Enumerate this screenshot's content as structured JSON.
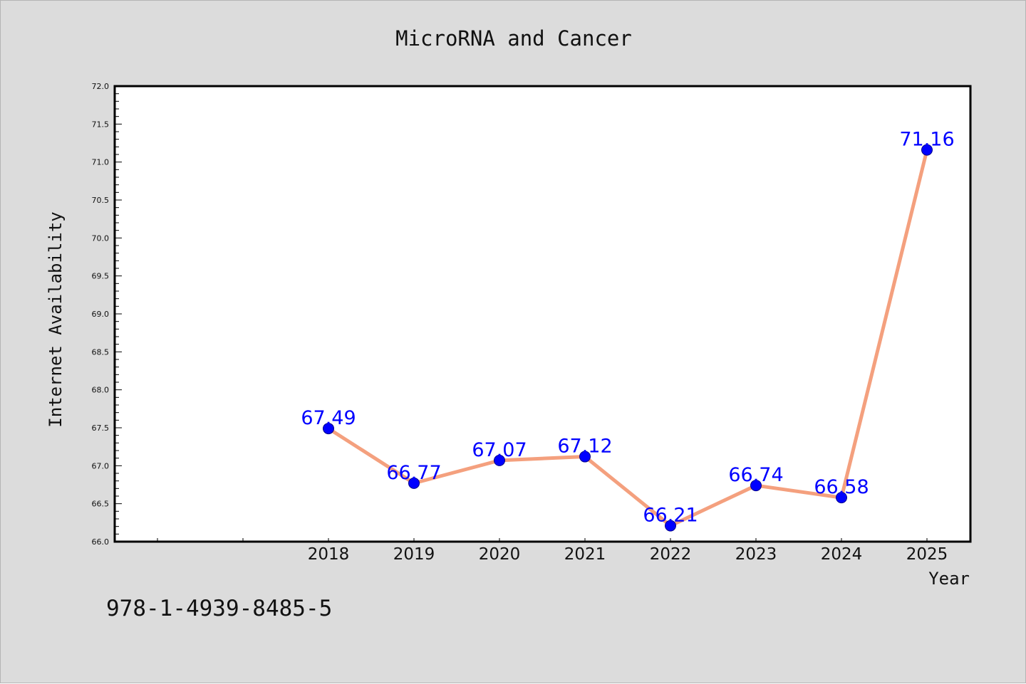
{
  "chart_data": {
    "type": "line",
    "title": "MicroRNA and Cancer",
    "xlabel": "Year",
    "ylabel": "Internet Availability",
    "x": [
      "2018",
      "2019",
      "2020",
      "2021",
      "2022",
      "2023",
      "2024",
      "2025"
    ],
    "series": [
      {
        "values": [
          67.49,
          66.77,
          67.07,
          67.12,
          66.21,
          66.74,
          66.58,
          71.16
        ]
      }
    ],
    "data_labels": [
      "67.49",
      "66.77",
      "67.07",
      "67.12",
      "66.21",
      "66.74",
      "66.58",
      "71.16"
    ],
    "ylim": [
      66.0,
      72.0
    ],
    "yticks": [
      "66.0",
      "66.5",
      "67.0",
      "67.5",
      "68.0",
      "68.5",
      "69.0",
      "69.5",
      "70.0",
      "70.5",
      "71.0",
      "71.5",
      "72.0"
    ],
    "grid": false,
    "legend": "none",
    "colors": {
      "line": "#f4a07e",
      "marker": "#0000ff",
      "marker_edge": "#00008b",
      "data_label": "#0000ff",
      "background": "#dcdcdc",
      "plot_background": "#ffffff"
    }
  },
  "footer": {
    "code": "978-1-4939-8485-5"
  }
}
